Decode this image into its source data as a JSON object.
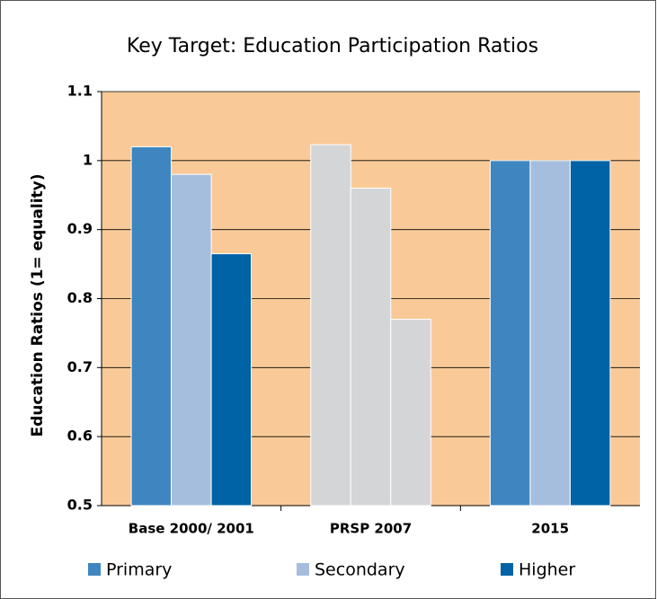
{
  "chart_data": {
    "type": "bar",
    "title": "Key Target: Education Participation Ratios",
    "y_label": "Education Ratios (1= equality)",
    "categories": [
      "Base 2000/ 2001",
      "PRSP 2007",
      "2015"
    ],
    "series": [
      {
        "name": "Primary",
        "color": "#3f86c0",
        "colors": [
          "#3f86c0",
          "#d4d5d7",
          "#3f86c0"
        ],
        "values": [
          1.02,
          1.023,
          1
        ]
      },
      {
        "name": "Secondary",
        "color": "#a6bedd",
        "colors": [
          "#a6bedd",
          "#d4d5d7",
          "#a6bedd"
        ],
        "values": [
          0.98,
          0.96,
          1
        ]
      },
      {
        "name": "Higher",
        "color": "#0063a6",
        "colors": [
          "#0063a6",
          "#d4d5d7",
          "#0063a6"
        ],
        "values": [
          0.865,
          0.77,
          1
        ]
      }
    ],
    "ylim": [
      0.5,
      1.1
    ],
    "yticks": [
      0.5,
      0.6,
      0.7,
      0.8,
      0.9,
      1,
      1.1
    ],
    "grid": true,
    "plot_background": "#f9ca98"
  }
}
